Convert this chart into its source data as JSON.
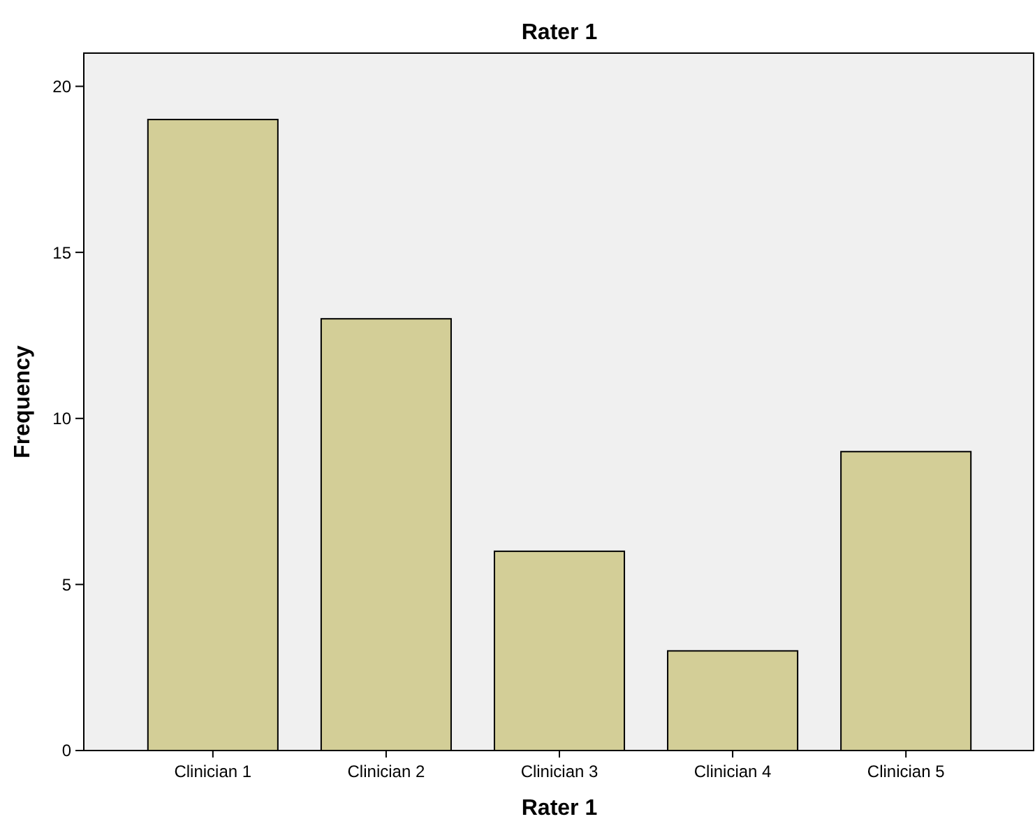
{
  "chart_data": {
    "type": "bar",
    "title": "Rater 1",
    "xlabel": "Rater 1",
    "ylabel": "Frequency",
    "categories": [
      "Clinician 1",
      "Clinician 2",
      "Clinician 3",
      "Clinician 4",
      "Clinician 5"
    ],
    "values": [
      19,
      13,
      6,
      3,
      9
    ],
    "color": "#d3ce97",
    "ylim": [
      0,
      21
    ],
    "yticks": [
      0,
      5,
      10,
      15,
      20
    ],
    "grid": false
  }
}
